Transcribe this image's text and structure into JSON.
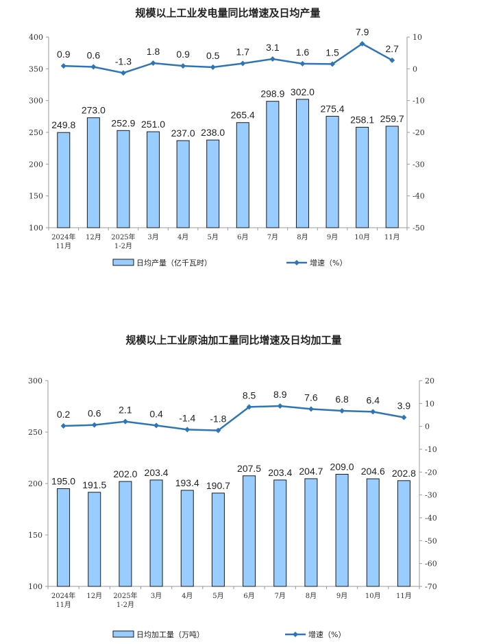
{
  "chart_data": [
    {
      "type": "bar+line",
      "title": "规模以上工业发电量同比增速及日均产量",
      "categories": [
        [
          "2024年",
          "11月"
        ],
        [
          "12月"
        ],
        [
          "2025年",
          "1-2月"
        ],
        [
          "3月"
        ],
        [
          "4月"
        ],
        [
          "5月"
        ],
        [
          "6月"
        ],
        [
          "7月"
        ],
        [
          "8月"
        ],
        [
          "9月"
        ],
        [
          "10月"
        ],
        [
          "11月"
        ]
      ],
      "series": [
        {
          "name": "日均产量（亿千瓦时）",
          "type": "bar",
          "axis": "left",
          "values": [
            249.8,
            273.0,
            252.9,
            251.0,
            237.0,
            238.0,
            265.4,
            298.9,
            302.0,
            275.4,
            258.1,
            259.7
          ],
          "labels": [
            "249.8",
            "273.0",
            "252.9",
            "251.0",
            "237.0",
            "238.0",
            "265.4",
            "298.9",
            "302.0",
            "275.4",
            "258.1",
            "259.7"
          ]
        },
        {
          "name": "增速（%）",
          "type": "line",
          "axis": "right",
          "values": [
            0.9,
            0.6,
            -1.3,
            1.8,
            0.9,
            0.5,
            1.7,
            3.1,
            1.6,
            1.5,
            7.9,
            2.7
          ],
          "labels": [
            "0.9",
            "0.6",
            "-1.3",
            "1.8",
            "0.9",
            "0.5",
            "1.7",
            "3.1",
            "1.6",
            "1.5",
            "7.9",
            "2.7"
          ]
        }
      ],
      "ylim_left": [
        100,
        400
      ],
      "yticks_left": [
        100,
        150,
        200,
        250,
        300,
        350,
        400
      ],
      "ylim_right": [
        -50,
        10
      ],
      "yticks_right": [
        -50,
        -40,
        -30,
        -20,
        -10,
        0,
        10
      ],
      "legend": "bottom",
      "grid": false,
      "colors": {
        "bar": "#99CCFF",
        "bar_edge": "#1a1a1a",
        "line": "#2E75B6"
      }
    },
    {
      "type": "bar+line",
      "title": "规模以上工业原油加工量同比增速及日均加工量",
      "categories": [
        [
          "2024年",
          "11月"
        ],
        [
          "12月"
        ],
        [
          "2025年",
          "1-2月"
        ],
        [
          "3月"
        ],
        [
          "4月"
        ],
        [
          "5月"
        ],
        [
          "6月"
        ],
        [
          "7月"
        ],
        [
          "8月"
        ],
        [
          "9月"
        ],
        [
          "10月"
        ],
        [
          "11月"
        ]
      ],
      "series": [
        {
          "name": "日均加工量（万吨）",
          "type": "bar",
          "axis": "left",
          "values": [
            195.0,
            191.5,
            202.0,
            203.4,
            193.4,
            190.7,
            207.5,
            203.4,
            204.7,
            209.0,
            204.6,
            202.8
          ],
          "labels": [
            "195.0",
            "191.5",
            "202.0",
            "203.4",
            "193.4",
            "190.7",
            "207.5",
            "203.4",
            "204.7",
            "209.0",
            "204.6",
            "202.8"
          ]
        },
        {
          "name": "增速（%）",
          "type": "line",
          "axis": "right",
          "values": [
            0.2,
            0.6,
            2.1,
            0.4,
            -1.4,
            -1.8,
            8.5,
            8.9,
            7.6,
            6.8,
            6.4,
            3.9
          ],
          "labels": [
            "0.2",
            "0.6",
            "2.1",
            "0.4",
            "-1.4",
            "-1.8",
            "8.5",
            "8.9",
            "7.6",
            "6.8",
            "6.4",
            "3.9"
          ]
        }
      ],
      "ylim_left": [
        100,
        300
      ],
      "yticks_left": [
        100,
        150,
        200,
        250,
        300
      ],
      "ylim_right": [
        -70,
        20
      ],
      "yticks_right": [
        -70,
        -60,
        -50,
        -40,
        -30,
        -20,
        -10,
        0,
        10,
        20
      ],
      "legend": "bottom",
      "grid": false,
      "colors": {
        "bar": "#99CCFF",
        "bar_edge": "#1a1a1a",
        "line": "#2E75B6"
      }
    }
  ]
}
